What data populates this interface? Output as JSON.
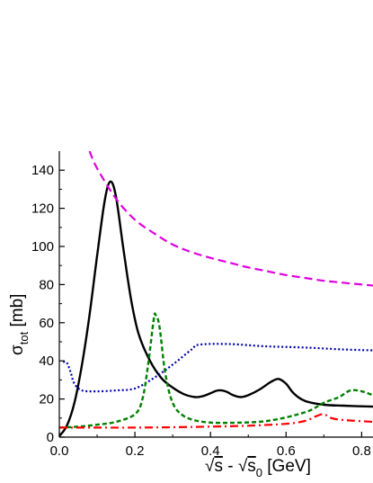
{
  "chart_data": {
    "type": "line",
    "xlabel": {
      "main": "s - s",
      "sub": "0",
      "unit": " [GeV]"
    },
    "ylabel": {
      "main": "σ",
      "sub": "tot",
      "unit": " [mb]"
    },
    "xlim": [
      0.0,
      0.83
    ],
    "ylim": [
      0,
      150
    ],
    "xticks": [
      0.0,
      0.2,
      0.4,
      0.6,
      0.8
    ],
    "xtick_labels": [
      "0.0",
      "0.2",
      "0.4",
      "0.6",
      "0.8"
    ],
    "yticks": [
      0,
      20,
      40,
      60,
      80,
      100,
      120,
      140
    ],
    "ytick_labels": [
      "0",
      "20",
      "40",
      "60",
      "80",
      "100",
      "120",
      "140"
    ],
    "grid": false,
    "legend": "none",
    "series": [
      {
        "style": "solid",
        "color": "#000000",
        "points": [
          [
            0.0,
            0.5
          ],
          [
            0.02,
            6
          ],
          [
            0.04,
            18
          ],
          [
            0.06,
            38
          ],
          [
            0.08,
            64
          ],
          [
            0.1,
            95
          ],
          [
            0.12,
            124
          ],
          [
            0.135,
            134
          ],
          [
            0.15,
            126
          ],
          [
            0.17,
            98
          ],
          [
            0.19,
            72
          ],
          [
            0.21,
            54
          ],
          [
            0.24,
            40
          ],
          [
            0.27,
            31
          ],
          [
            0.3,
            26
          ],
          [
            0.33,
            22.5
          ],
          [
            0.36,
            21
          ],
          [
            0.38,
            21.5
          ],
          [
            0.4,
            23
          ],
          [
            0.42,
            24.5
          ],
          [
            0.44,
            24
          ],
          [
            0.46,
            22
          ],
          [
            0.48,
            21
          ],
          [
            0.5,
            22
          ],
          [
            0.53,
            25
          ],
          [
            0.56,
            29
          ],
          [
            0.58,
            30.5
          ],
          [
            0.6,
            28
          ],
          [
            0.62,
            23
          ],
          [
            0.65,
            19
          ],
          [
            0.7,
            17
          ],
          [
            0.75,
            16.5
          ],
          [
            0.83,
            16
          ]
        ]
      },
      {
        "style": "dashed",
        "color": "#e000e0",
        "points": [
          [
            0.08,
            150
          ],
          [
            0.1,
            141
          ],
          [
            0.15,
            125
          ],
          [
            0.2,
            114
          ],
          [
            0.25,
            107
          ],
          [
            0.3,
            101
          ],
          [
            0.35,
            97
          ],
          [
            0.4,
            94
          ],
          [
            0.45,
            91.5
          ],
          [
            0.5,
            89
          ],
          [
            0.55,
            87
          ],
          [
            0.6,
            85
          ],
          [
            0.65,
            83.5
          ],
          [
            0.7,
            82
          ],
          [
            0.75,
            81
          ],
          [
            0.83,
            79.5
          ]
        ]
      },
      {
        "style": "dotted",
        "color": "#0000aa",
        "points": [
          [
            0.01,
            39.5
          ],
          [
            0.02,
            39
          ],
          [
            0.03,
            34
          ],
          [
            0.04,
            28
          ],
          [
            0.06,
            24.5
          ],
          [
            0.1,
            24
          ],
          [
            0.15,
            24.5
          ],
          [
            0.2,
            25.5
          ],
          [
            0.25,
            31
          ],
          [
            0.3,
            38
          ],
          [
            0.35,
            46
          ],
          [
            0.37,
            48.5
          ],
          [
            0.45,
            48.8
          ],
          [
            0.55,
            47.6
          ],
          [
            0.65,
            47
          ],
          [
            0.75,
            46
          ],
          [
            0.83,
            45.5
          ]
        ]
      },
      {
        "style": "short-dash",
        "color": "#008000",
        "points": [
          [
            0.0,
            5
          ],
          [
            0.05,
            5.5
          ],
          [
            0.1,
            6.5
          ],
          [
            0.15,
            8
          ],
          [
            0.2,
            12
          ],
          [
            0.22,
            20
          ],
          [
            0.235,
            38
          ],
          [
            0.25,
            62
          ],
          [
            0.255,
            64
          ],
          [
            0.265,
            58
          ],
          [
            0.28,
            34
          ],
          [
            0.3,
            18
          ],
          [
            0.33,
            11
          ],
          [
            0.38,
            8
          ],
          [
            0.45,
            7.5
          ],
          [
            0.55,
            8.5
          ],
          [
            0.65,
            13
          ],
          [
            0.7,
            18
          ],
          [
            0.74,
            21
          ],
          [
            0.77,
            24.5
          ],
          [
            0.8,
            24
          ],
          [
            0.83,
            22
          ]
        ]
      },
      {
        "style": "dash-dot",
        "color": "#ff0000",
        "points": [
          [
            0.0,
            5
          ],
          [
            0.1,
            5
          ],
          [
            0.2,
            5
          ],
          [
            0.3,
            5.2
          ],
          [
            0.4,
            5.5
          ],
          [
            0.5,
            6
          ],
          [
            0.6,
            7
          ],
          [
            0.65,
            8.5
          ],
          [
            0.68,
            11
          ],
          [
            0.7,
            12
          ],
          [
            0.72,
            10
          ],
          [
            0.75,
            9
          ],
          [
            0.83,
            8
          ]
        ]
      }
    ]
  }
}
